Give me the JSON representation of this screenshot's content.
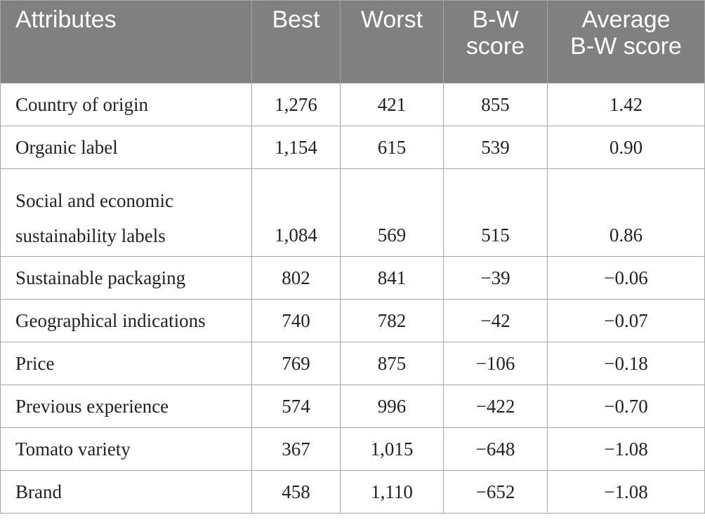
{
  "table": {
    "headers": {
      "attributes": "Attributes",
      "best": "Best",
      "worst": "Worst",
      "bw_score_line1": "B-W",
      "bw_score_line2": "score",
      "avg_bw_score_line1": "Average",
      "avg_bw_score_line2": "B-W score"
    },
    "rows": [
      {
        "attribute": "Country of origin",
        "best": "1,276",
        "worst": "421",
        "bw_score": "855",
        "avg_bw_score": "1.42"
      },
      {
        "attribute": "Organic label",
        "best": "1,154",
        "worst": "615",
        "bw_score": "539",
        "avg_bw_score": "0.90"
      },
      {
        "attribute_line1": "Social and economic",
        "attribute_line2": "sustainability labels",
        "best": "1,084",
        "worst": "569",
        "bw_score": "515",
        "avg_bw_score": "0.86"
      },
      {
        "attribute": "Sustainable packaging",
        "best": "802",
        "worst": "841",
        "bw_score": "−39",
        "avg_bw_score": "−0.06"
      },
      {
        "attribute": "Geographical indications",
        "best": "740",
        "worst": "782",
        "bw_score": "−42",
        "avg_bw_score": "−0.07"
      },
      {
        "attribute": "Price",
        "best": "769",
        "worst": "875",
        "bw_score": "−106",
        "avg_bw_score": "−0.18"
      },
      {
        "attribute": "Previous experience",
        "best": "574",
        "worst": "996",
        "bw_score": "−422",
        "avg_bw_score": "−0.70"
      },
      {
        "attribute": "Tomato variety",
        "best": "367",
        "worst": "1,015",
        "bw_score": "−648",
        "avg_bw_score": "−1.08"
      },
      {
        "attribute": "Brand",
        "best": "458",
        "worst": "1,110",
        "bw_score": "−652",
        "avg_bw_score": "−1.08"
      }
    ]
  }
}
